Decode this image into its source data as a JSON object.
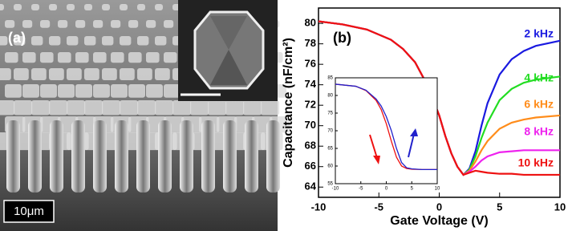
{
  "panel_a": {
    "label": "(a)",
    "scale_bar": "10μm"
  },
  "chart_data": [
    {
      "type": "line",
      "label": "(b)",
      "xlabel": "Gate Voltage (V)",
      "ylabel": "Capacitance (nF/cm²)",
      "x": [
        -10,
        -8,
        -6,
        -4,
        -3,
        -2,
        -1,
        0,
        0.5,
        1,
        1.5,
        2,
        2.5,
        3,
        3.5,
        4,
        5,
        6,
        7,
        8,
        10
      ],
      "xlim": [
        -10,
        10
      ],
      "xticks": [
        -10,
        -5,
        0,
        5,
        10
      ],
      "ylim": [
        63,
        81.5
      ],
      "yticks": [
        64,
        66,
        68,
        70,
        72,
        74,
        76,
        78,
        80
      ],
      "series": [
        {
          "name": "2 kHz",
          "color": "#1a1ae0",
          "values": [
            80.2,
            79.9,
            79.4,
            78.4,
            77.5,
            76.2,
            74.0,
            71.0,
            69.0,
            67.3,
            66.0,
            65.2,
            65.8,
            67.5,
            70.0,
            72.2,
            75.0,
            76.5,
            77.3,
            77.8,
            78.3
          ]
        },
        {
          "name": "4 kHz",
          "color": "#22dd22",
          "values": [
            80.2,
            79.9,
            79.4,
            78.4,
            77.5,
            76.2,
            74.0,
            71.0,
            69.0,
            67.3,
            66.0,
            65.2,
            65.7,
            67.0,
            68.8,
            70.3,
            72.5,
            73.6,
            74.2,
            74.5,
            74.8
          ]
        },
        {
          "name": "6 kHz",
          "color": "#ff8c1a",
          "values": [
            80.2,
            79.9,
            79.4,
            78.4,
            77.5,
            76.2,
            74.0,
            71.0,
            69.0,
            67.3,
            66.0,
            65.2,
            65.6,
            66.5,
            67.6,
            68.5,
            69.7,
            70.3,
            70.6,
            70.8,
            71.0
          ]
        },
        {
          "name": "8 kHz",
          "color": "#ee22ee",
          "values": [
            80.2,
            79.9,
            79.4,
            78.4,
            77.5,
            76.2,
            74.0,
            71.0,
            69.0,
            67.3,
            66.0,
            65.2,
            65.5,
            66.0,
            66.6,
            67.0,
            67.4,
            67.5,
            67.6,
            67.6,
            67.6
          ]
        },
        {
          "name": "10 kHz",
          "color": "#ee1111",
          "values": [
            80.2,
            79.9,
            79.4,
            78.4,
            77.5,
            76.2,
            74.0,
            71.0,
            69.0,
            67.3,
            66.0,
            65.2,
            65.4,
            65.6,
            65.5,
            65.4,
            65.3,
            65.3,
            65.2,
            65.2,
            65.2
          ]
        }
      ]
    },
    {
      "type": "line",
      "x": [
        -10,
        -6,
        -4,
        -2,
        -1,
        0,
        1,
        2,
        3,
        4,
        5,
        7,
        10
      ],
      "xlim": [
        -10,
        10
      ],
      "xticks": [
        -10,
        -5,
        0,
        5,
        10
      ],
      "ylim": [
        55,
        85
      ],
      "yticks": [
        55,
        60,
        65,
        70,
        75,
        80,
        85
      ],
      "series": [
        {
          "color": "#ee1111",
          "values": [
            83.2,
            82.6,
            81.4,
            78.6,
            76.0,
            72.0,
            67.0,
            62.5,
            60.0,
            59.3,
            59.1,
            59.0,
            59.0
          ]
        },
        {
          "color": "#2222cc",
          "values": [
            83.2,
            82.6,
            81.5,
            79.0,
            77.0,
            74.0,
            70.0,
            65.0,
            61.0,
            59.5,
            59.2,
            59.0,
            59.0
          ]
        }
      ]
    }
  ]
}
